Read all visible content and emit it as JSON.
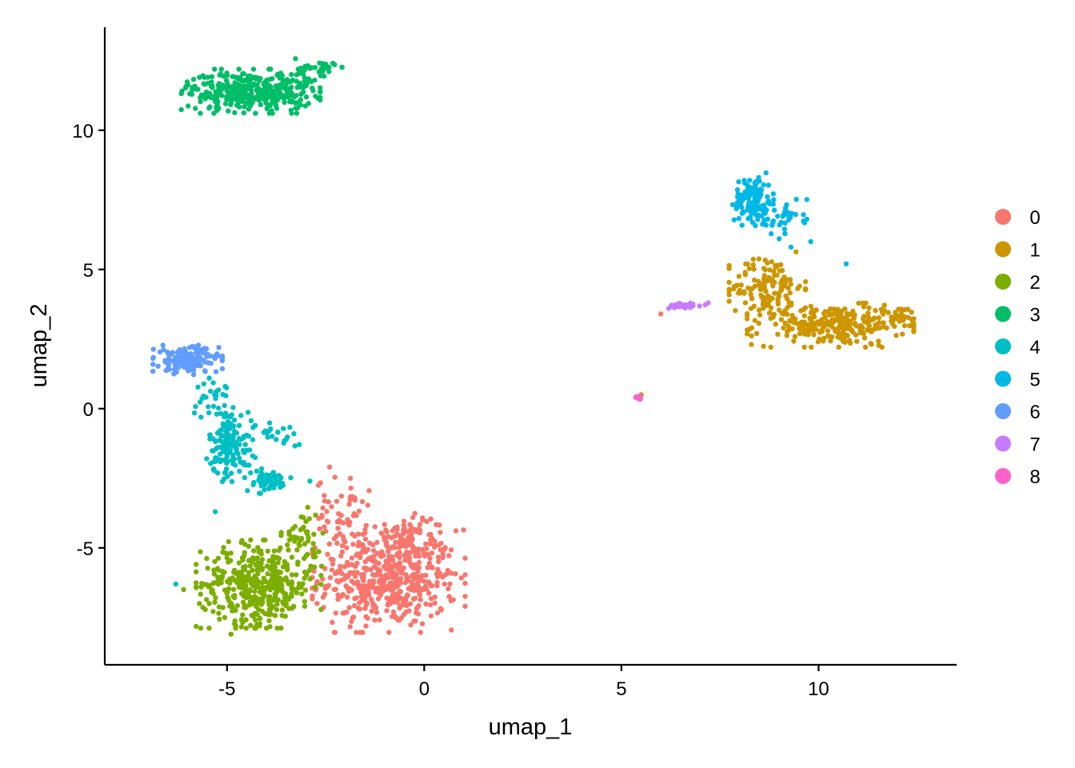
{
  "chart_data": {
    "type": "scatter",
    "title": "",
    "xlabel": "umap_1",
    "ylabel": "umap_2",
    "xlim": [
      -8.1,
      13.5
    ],
    "ylim": [
      -9.2,
      13.7
    ],
    "x_ticks": [
      -5,
      0,
      5,
      10
    ],
    "y_ticks": [
      -5,
      0,
      5,
      10
    ],
    "x_tick_labels": [
      "-5",
      "0",
      "5",
      "10"
    ],
    "y_tick_labels": [
      "-5",
      "0",
      "5",
      "10"
    ],
    "grid": false,
    "legend_position": "right",
    "series": [
      {
        "name": "0",
        "color": "#F8766D",
        "clusters": [
          {
            "center": [
              -0.9,
              -6.1
            ],
            "spread": [
              1.1,
              1.1
            ],
            "n": 520
          },
          {
            "center": [
              -2.1,
              -3.8
            ],
            "spread": [
              0.4,
              0.8
            ],
            "n": 60
          },
          {
            "center": [
              -0.3,
              -4.4
            ],
            "spread": [
              0.4,
              0.4
            ],
            "n": 40
          }
        ],
        "points": [
          [
            6.0,
            3.4
          ],
          [
            -2.4,
            -2.1
          ]
        ]
      },
      {
        "name": "1",
        "color": "#CD9600",
        "clusters": [
          {
            "center": [
              10.3,
              3.0
            ],
            "spread": [
              1.2,
              0.45
            ],
            "n": 260
          },
          {
            "center": [
              8.7,
              4.4
            ],
            "spread": [
              0.55,
              0.7
            ],
            "n": 130
          },
          {
            "center": [
              12.0,
              3.3
            ],
            "spread": [
              0.35,
              0.25
            ],
            "n": 30
          }
        ],
        "points": [
          [
            5.5,
            0.5
          ]
        ]
      },
      {
        "name": "2",
        "color": "#7CAE00",
        "clusters": [
          {
            "center": [
              -4.2,
              -6.3
            ],
            "spread": [
              0.9,
              0.9
            ],
            "n": 420
          },
          {
            "center": [
              -3.1,
              -4.6
            ],
            "spread": [
              0.3,
              0.6
            ],
            "n": 40
          }
        ],
        "points": [
          [
            -6.1,
            -6.5
          ],
          [
            -5.7,
            -7.0
          ],
          [
            -4.9,
            -8.1
          ]
        ]
      },
      {
        "name": "3",
        "color": "#00BE67",
        "clusters": [
          {
            "center": [
              -4.4,
              11.4
            ],
            "spread": [
              1.0,
              0.45
            ],
            "n": 380
          },
          {
            "center": [
              -2.7,
              12.2
            ],
            "spread": [
              0.35,
              0.25
            ],
            "n": 40
          }
        ]
      },
      {
        "name": "4",
        "color": "#00BFC4",
        "clusters": [
          {
            "center": [
              -4.9,
              -1.3
            ],
            "spread": [
              0.35,
              0.75
            ],
            "n": 150
          },
          {
            "center": [
              -4.0,
              -2.6
            ],
            "spread": [
              0.35,
              0.25
            ],
            "n": 60
          },
          {
            "center": [
              -5.3,
              0.4
            ],
            "spread": [
              0.3,
              0.4
            ],
            "n": 30
          },
          {
            "center": [
              -3.6,
              -0.9
            ],
            "spread": [
              0.35,
              0.25
            ],
            "n": 20
          }
        ],
        "points": [
          [
            -6.3,
            -6.3
          ],
          [
            -2.9,
            -2.6
          ],
          [
            -5.3,
            -3.7
          ]
        ]
      },
      {
        "name": "5",
        "color": "#00B8E7",
        "clusters": [
          {
            "center": [
              8.35,
              7.5
            ],
            "spread": [
              0.3,
              0.55
            ],
            "n": 120
          },
          {
            "center": [
              9.0,
              6.9
            ],
            "spread": [
              0.4,
              0.35
            ],
            "n": 40
          }
        ],
        "points": [
          [
            10.7,
            5.2
          ],
          [
            9.8,
            6.0
          ],
          [
            9.3,
            5.8
          ],
          [
            9.0,
            6.1
          ]
        ]
      },
      {
        "name": "6",
        "color": "#619CFF",
        "clusters": [
          {
            "center": [
              -6.0,
              1.75
            ],
            "spread": [
              0.5,
              0.3
            ],
            "n": 170
          }
        ]
      },
      {
        "name": "7",
        "color": "#C77CFF",
        "clusters": [
          {
            "center": [
              6.6,
              3.7
            ],
            "spread": [
              0.3,
              0.05
            ],
            "n": 40
          }
        ],
        "points": [
          [
            6.2,
            3.6
          ],
          [
            7.2,
            3.8
          ]
        ]
      },
      {
        "name": "8",
        "color": "#FF61CC",
        "clusters": [
          {
            "center": [
              5.45,
              0.42
            ],
            "spread": [
              0.05,
              0.05
            ],
            "n": 7
          }
        ]
      }
    ]
  }
}
